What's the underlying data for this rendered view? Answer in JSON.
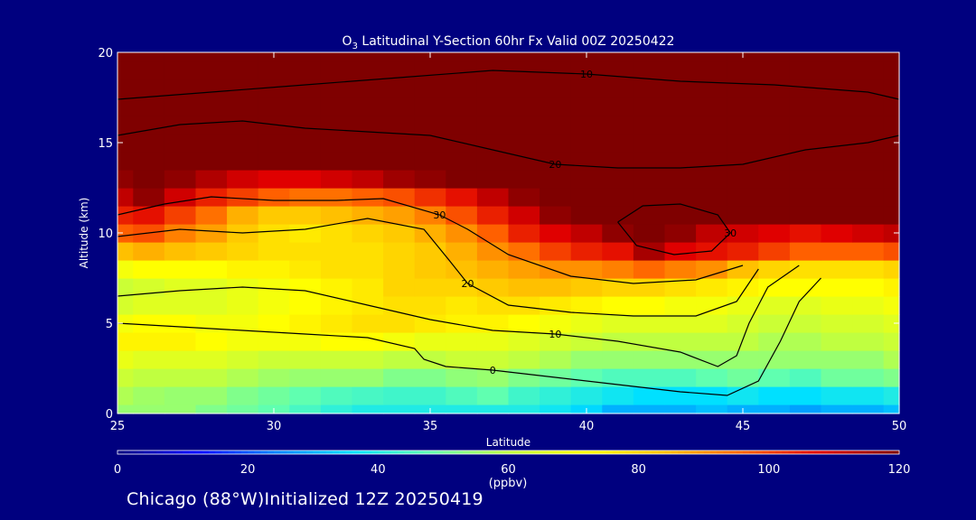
{
  "chart_data": {
    "type": "heatmap",
    "title": "Latitudinal Y-Section 60hr  Fx Valid 00Z 20250422",
    "title_species": "O",
    "title_species_sub": "3",
    "xlabel": "Latitude",
    "ylabel": "Altitude (km)",
    "xlim": [
      25,
      50
    ],
    "ylim": [
      0,
      20
    ],
    "xticks": [
      25,
      30,
      35,
      40,
      45,
      50
    ],
    "yticks": [
      0,
      5,
      10,
      15,
      20
    ],
    "colorbar": {
      "min": 0,
      "max": 120,
      "ticks": [
        0,
        20,
        40,
        60,
        80,
        100,
        120
      ],
      "label": "(ppbv)",
      "colors": [
        "#00007f",
        "#0000ff",
        "#0080ff",
        "#00e0ff",
        "#60ffb0",
        "#c0ff40",
        "#ffff00",
        "#ffc000",
        "#ff6000",
        "#e00000",
        "#7f0000"
      ]
    },
    "x": [
      25,
      26,
      27,
      28,
      29,
      30,
      31,
      32,
      33,
      34,
      35,
      36,
      37,
      38,
      39,
      40,
      41,
      42,
      43,
      44,
      45,
      46,
      47,
      48,
      49,
      50
    ],
    "y": [
      0,
      1,
      2,
      3,
      4,
      5,
      6,
      7,
      8,
      9,
      10,
      11,
      12,
      13,
      14,
      15,
      16,
      17,
      18,
      19,
      20
    ],
    "z": [
      [
        55,
        55,
        55,
        52,
        50,
        48,
        45,
        42,
        40,
        40,
        40,
        40,
        40,
        40,
        38,
        35,
        30,
        30,
        30,
        32,
        30,
        30,
        28,
        30,
        30,
        32
      ],
      [
        58,
        56,
        55,
        55,
        52,
        50,
        48,
        46,
        45,
        44,
        44,
        46,
        48,
        44,
        42,
        40,
        38,
        36,
        36,
        36,
        38,
        36,
        36,
        38,
        38,
        40
      ],
      [
        62,
        60,
        60,
        60,
        58,
        56,
        55,
        55,
        55,
        52,
        52,
        54,
        55,
        52,
        50,
        48,
        46,
        46,
        46,
        48,
        50,
        48,
        46,
        50,
        50,
        52
      ],
      [
        68,
        66,
        66,
        66,
        64,
        62,
        62,
        62,
        62,
        60,
        60,
        62,
        62,
        60,
        58,
        55,
        55,
        55,
        55,
        55,
        55,
        55,
        55,
        55,
        55,
        58
      ],
      [
        74,
        74,
        74,
        72,
        70,
        70,
        70,
        72,
        72,
        70,
        68,
        68,
        68,
        66,
        64,
        62,
        60,
        60,
        60,
        60,
        60,
        58,
        58,
        60,
        60,
        62
      ],
      [
        70,
        72,
        72,
        70,
        70,
        72,
        74,
        76,
        78,
        78,
        76,
        74,
        74,
        72,
        70,
        68,
        66,
        66,
        66,
        66,
        64,
        62,
        62,
        64,
        64,
        66
      ],
      [
        64,
        66,
        66,
        66,
        68,
        70,
        72,
        74,
        76,
        78,
        78,
        76,
        78,
        78,
        76,
        74,
        72,
        72,
        70,
        70,
        68,
        66,
        66,
        68,
        68,
        70
      ],
      [
        62,
        64,
        66,
        66,
        68,
        70,
        72,
        74,
        76,
        80,
        80,
        80,
        82,
        84,
        84,
        82,
        80,
        80,
        78,
        76,
        74,
        72,
        72,
        72,
        72,
        74
      ],
      [
        70,
        72,
        72,
        72,
        74,
        74,
        76,
        78,
        78,
        80,
        82,
        84,
        86,
        88,
        90,
        90,
        92,
        95,
        92,
        90,
        84,
        80,
        78,
        78,
        78,
        80
      ],
      [
        84,
        86,
        84,
        82,
        80,
        78,
        78,
        78,
        78,
        80,
        82,
        86,
        90,
        94,
        100,
        104,
        106,
        115,
        108,
        106,
        104,
        100,
        96,
        96,
        96,
        98
      ],
      [
        96,
        98,
        92,
        88,
        82,
        78,
        76,
        78,
        80,
        82,
        86,
        90,
        96,
        104,
        108,
        112,
        118,
        120,
        118,
        112,
        110,
        108,
        106,
        108,
        110,
        112
      ],
      [
        104,
        106,
        100,
        94,
        86,
        82,
        82,
        84,
        86,
        88,
        92,
        98,
        104,
        110,
        118,
        120,
        120,
        120,
        120,
        120,
        120,
        120,
        120,
        120,
        120,
        120
      ],
      [
        112,
        118,
        110,
        104,
        100,
        96,
        94,
        94,
        96,
        98,
        102,
        106,
        112,
        118,
        120,
        120,
        120,
        120,
        120,
        120,
        120,
        120,
        120,
        120,
        120,
        120
      ],
      [
        118,
        120,
        118,
        114,
        110,
        108,
        108,
        110,
        112,
        116,
        118,
        120,
        120,
        120,
        120,
        120,
        120,
        120,
        120,
        120,
        120,
        120,
        120,
        120,
        120,
        120
      ],
      [
        120,
        120,
        120,
        120,
        120,
        120,
        120,
        120,
        120,
        120,
        120,
        120,
        120,
        120,
        120,
        120,
        120,
        120,
        120,
        120,
        120,
        120,
        120,
        120,
        120,
        120
      ],
      [
        120,
        120,
        120,
        120,
        120,
        120,
        120,
        120,
        120,
        120,
        120,
        120,
        120,
        120,
        120,
        120,
        120,
        120,
        120,
        120,
        120,
        120,
        120,
        120,
        120,
        120
      ],
      [
        120,
        120,
        120,
        120,
        120,
        120,
        120,
        120,
        120,
        120,
        120,
        120,
        120,
        120,
        120,
        120,
        120,
        120,
        120,
        120,
        120,
        120,
        120,
        120,
        120,
        120
      ],
      [
        120,
        120,
        120,
        120,
        120,
        120,
        120,
        120,
        120,
        120,
        120,
        120,
        120,
        120,
        120,
        120,
        120,
        120,
        120,
        120,
        120,
        120,
        120,
        120,
        120,
        120
      ],
      [
        120,
        120,
        120,
        120,
        120,
        120,
        120,
        120,
        120,
        120,
        120,
        120,
        120,
        120,
        120,
        120,
        120,
        120,
        120,
        120,
        120,
        120,
        120,
        120,
        120,
        120
      ],
      [
        120,
        120,
        120,
        120,
        120,
        120,
        120,
        120,
        120,
        120,
        120,
        120,
        120,
        120,
        120,
        120,
        120,
        120,
        120,
        120,
        120,
        120,
        120,
        120,
        120,
        120
      ],
      [
        120,
        120,
        120,
        120,
        120,
        120,
        120,
        120,
        120,
        120,
        120,
        120,
        120,
        120,
        120,
        120,
        120,
        120,
        120,
        120,
        120,
        120,
        120,
        120,
        120,
        120
      ]
    ],
    "contours": [
      {
        "label": "0",
        "points": [
          [
            25,
            5.0
          ],
          [
            27,
            4.8
          ],
          [
            29,
            4.6
          ],
          [
            31,
            4.4
          ],
          [
            33,
            4.2
          ],
          [
            34.5,
            3.6
          ],
          [
            34.8,
            3.0
          ],
          [
            35.5,
            2.6
          ],
          [
            37,
            2.4
          ],
          [
            39,
            2.0
          ],
          [
            41,
            1.6
          ],
          [
            43,
            1.2
          ],
          [
            44.5,
            1.0
          ],
          [
            45.5,
            1.8
          ],
          [
            46.2,
            4.0
          ],
          [
            46.8,
            6.2
          ],
          [
            47.5,
            7.5
          ]
        ]
      },
      {
        "label": "10",
        "points": [
          [
            25,
            6.5
          ],
          [
            27,
            6.8
          ],
          [
            29,
            7.0
          ],
          [
            31,
            6.8
          ],
          [
            33,
            6.0
          ],
          [
            35,
            5.2
          ],
          [
            37,
            4.6
          ],
          [
            39,
            4.4
          ],
          [
            41,
            4.0
          ],
          [
            43,
            3.4
          ],
          [
            44.2,
            2.6
          ],
          [
            44.8,
            3.2
          ],
          [
            45.2,
            5.0
          ],
          [
            45.8,
            7.0
          ],
          [
            46.8,
            8.2
          ]
        ]
      },
      {
        "label": "20",
        "points": [
          [
            25,
            9.8
          ],
          [
            27,
            10.2
          ],
          [
            29,
            10.0
          ],
          [
            31,
            10.2
          ],
          [
            33,
            10.8
          ],
          [
            34.8,
            10.2
          ],
          [
            35.6,
            8.5
          ],
          [
            36.2,
            7.2
          ],
          [
            37.5,
            6.0
          ],
          [
            39.5,
            5.6
          ],
          [
            41.5,
            5.4
          ],
          [
            43.5,
            5.4
          ],
          [
            44.8,
            6.2
          ],
          [
            45.5,
            8.0
          ]
        ]
      },
      {
        "label": "30",
        "points": [
          [
            25,
            11.0
          ],
          [
            26.5,
            11.6
          ],
          [
            28,
            12.0
          ],
          [
            30,
            11.8
          ],
          [
            32,
            11.8
          ],
          [
            33.5,
            11.9
          ],
          [
            35.3,
            11.0
          ],
          [
            36.2,
            10.2
          ],
          [
            37.5,
            8.8
          ],
          [
            39.5,
            7.6
          ],
          [
            41.5,
            7.2
          ],
          [
            43.5,
            7.4
          ],
          [
            45,
            8.2
          ]
        ]
      },
      {
        "label": "30",
        "points": [
          [
            41.0,
            10.6
          ],
          [
            41.8,
            11.5
          ],
          [
            43.0,
            11.6
          ],
          [
            44.2,
            11.0
          ],
          [
            44.6,
            10.0
          ],
          [
            44.0,
            9.0
          ],
          [
            42.8,
            8.8
          ],
          [
            41.6,
            9.3
          ],
          [
            41.0,
            10.6
          ]
        ]
      },
      {
        "label": "20",
        "points": [
          [
            25,
            15.4
          ],
          [
            27,
            16.0
          ],
          [
            29,
            16.2
          ],
          [
            31,
            15.8
          ],
          [
            33,
            15.6
          ],
          [
            35,
            15.4
          ],
          [
            37,
            14.6
          ],
          [
            39,
            13.8
          ],
          [
            41,
            13.6
          ],
          [
            43,
            13.6
          ],
          [
            45,
            13.8
          ],
          [
            47,
            14.6
          ],
          [
            49,
            15.0
          ],
          [
            50,
            15.4
          ]
        ]
      },
      {
        "label": "10",
        "points": [
          [
            25,
            17.4
          ],
          [
            28,
            17.8
          ],
          [
            31,
            18.2
          ],
          [
            34,
            18.6
          ],
          [
            37,
            19.0
          ],
          [
            40,
            18.8
          ],
          [
            43,
            18.4
          ],
          [
            46,
            18.2
          ],
          [
            49,
            17.8
          ],
          [
            50,
            17.4
          ]
        ]
      }
    ]
  },
  "footer": {
    "text": "Chicago (88°W)Initialized 12Z 20250419"
  }
}
